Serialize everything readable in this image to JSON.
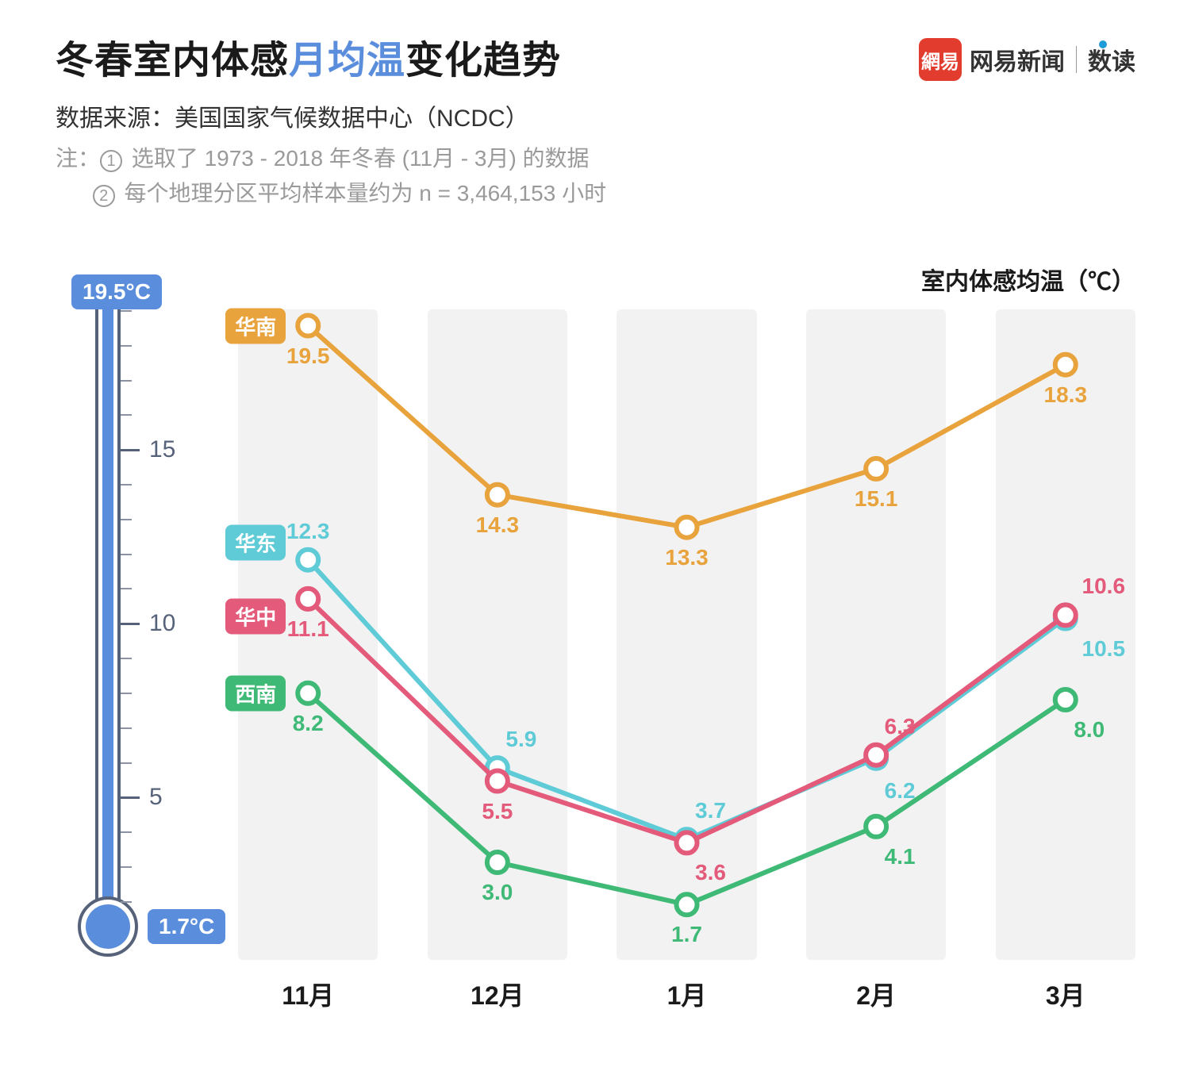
{
  "title_prefix": "冬春室内体感",
  "title_highlight": "月均温",
  "title_suffix": "变化趋势",
  "brand_logo_text": "網易",
  "brand_text_1": "网易新闻",
  "brand_text_2": "数读",
  "subtitle": "数据来源：美国国家气候数据中心（NCDC）",
  "note_prefix": "注：",
  "note1": "选取了 1973 - 2018 年冬春 (11月 - 3月) 的数据",
  "note2": "每个地理分区平均样本量约为 n = 3,464,153 小时",
  "y_title": "室内体感均温（℃）",
  "thermometer": {
    "max": 19.5,
    "min": 1.7,
    "max_label": "19.5°C",
    "min_label": "1.7°C",
    "major_ticks": [
      15,
      10,
      5
    ],
    "tick_labels": [
      "15",
      "10",
      "5"
    ],
    "tube_color": "#56627a",
    "fill_color": "#5a8edc"
  },
  "chart": {
    "type": "line",
    "months": [
      "11月",
      "12月",
      "1月",
      "2月",
      "3月"
    ],
    "y_min": 0,
    "y_max": 20,
    "band_color": "#f2f2f2",
    "background_color": "#ffffff",
    "point_radius": 13,
    "point_inner_radius": 7,
    "stroke_width": 6,
    "label_fontsize": 28,
    "axis_fontsize": 32,
    "series": [
      {
        "name": "华南",
        "color": "#e8a33c",
        "values": [
          19.5,
          14.3,
          13.3,
          15.1,
          18.3
        ],
        "label_offsets": [
          [
            0,
            22
          ],
          [
            0,
            22
          ],
          [
            0,
            22
          ],
          [
            0,
            22
          ],
          [
            0,
            22
          ]
        ],
        "tag_at": 0
      },
      {
        "name": "华东",
        "color": "#5ecbd6",
        "values": [
          12.3,
          5.9,
          3.7,
          6.2,
          10.5
        ],
        "label_offsets": [
          [
            0,
            -52
          ],
          [
            30,
            -52
          ],
          [
            30,
            -52
          ],
          [
            30,
            25
          ],
          [
            48,
            22
          ]
        ],
        "tag_at": 0,
        "tag_dy": -22
      },
      {
        "name": "华中",
        "color": "#e35a7a",
        "values": [
          11.1,
          5.5,
          3.6,
          6.3,
          10.6
        ],
        "label_offsets": [
          [
            0,
            22
          ],
          [
            0,
            22
          ],
          [
            30,
            22
          ],
          [
            30,
            -52
          ],
          [
            48,
            -52
          ]
        ],
        "tag_at": 0,
        "tag_dy": 22
      },
      {
        "name": "西南",
        "color": "#3fb976",
        "values": [
          8.2,
          3.0,
          1.7,
          4.1,
          8.0
        ],
        "label_offsets": [
          [
            0,
            22
          ],
          [
            0,
            22
          ],
          [
            0,
            22
          ],
          [
            30,
            22
          ],
          [
            30,
            22
          ]
        ],
        "tag_at": 0
      }
    ]
  }
}
